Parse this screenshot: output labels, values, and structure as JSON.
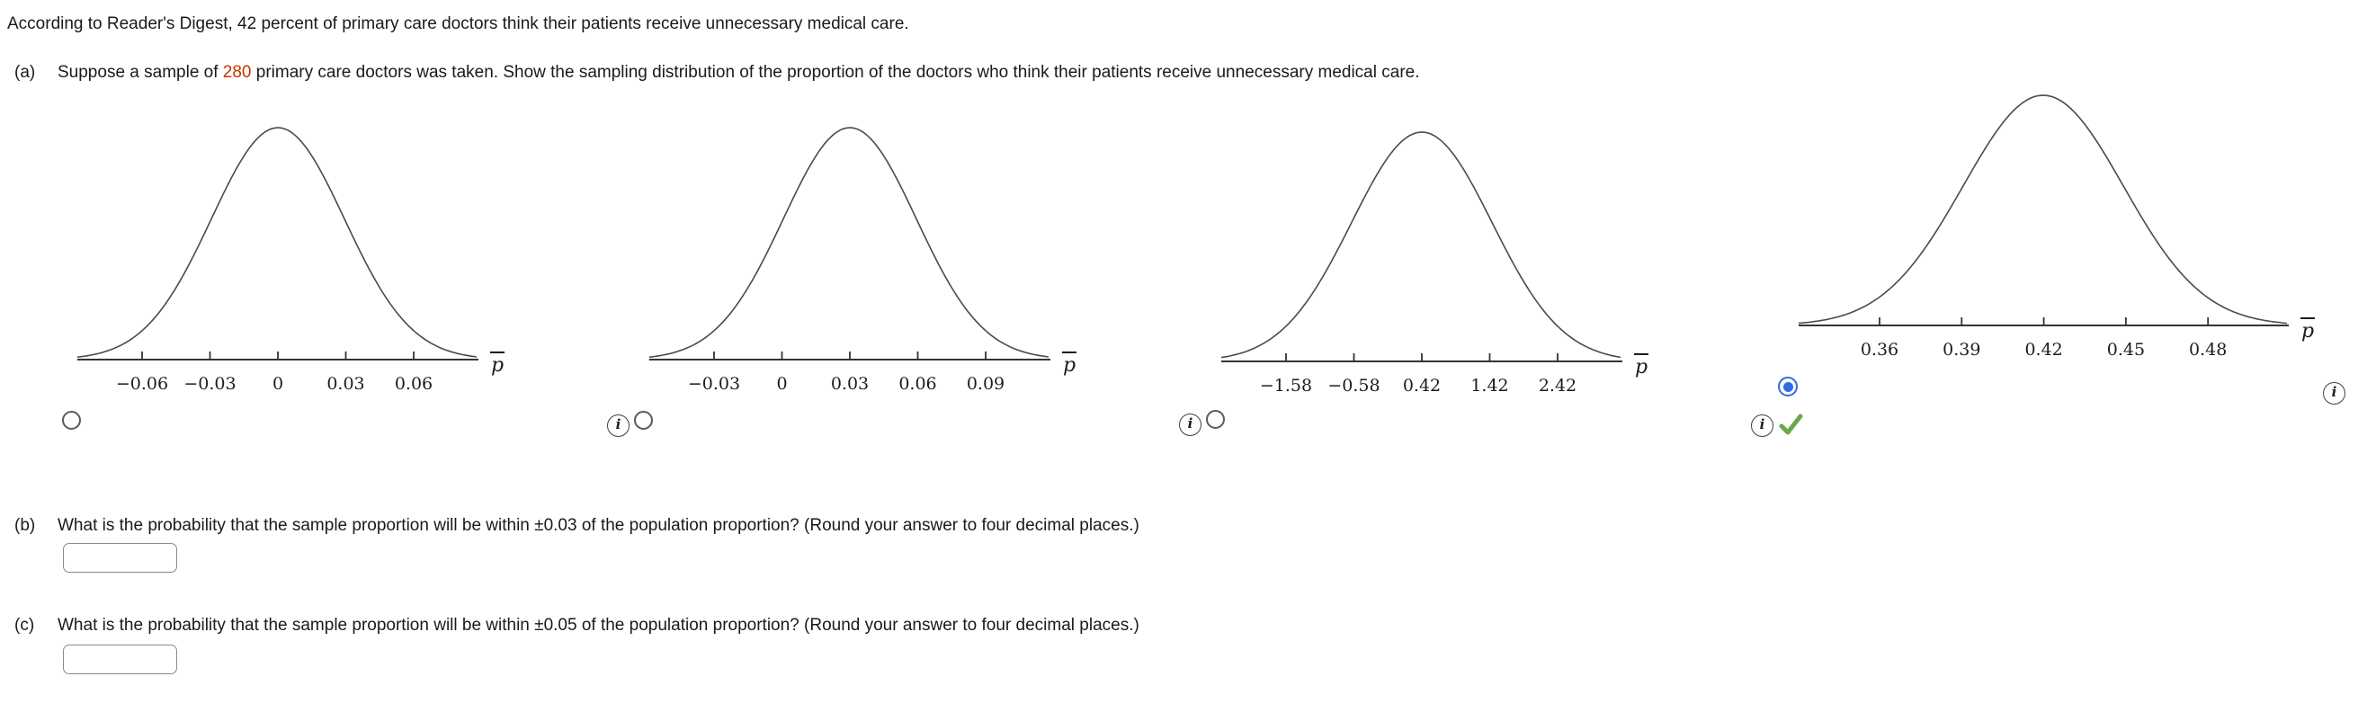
{
  "intro": "According to Reader's Digest, 42 percent of primary care doctors think their patients receive unnecessary medical care.",
  "part_a": {
    "label": "(a)",
    "text_prefix": "Suppose a sample of ",
    "highlight": "280",
    "text_suffix": " primary care doctors was taken. Show the sampling distribution of the proportion of the doctors who think their patients receive unnecessary medical care.",
    "options": [
      {
        "id": "option-1",
        "selected": false,
        "correct": false,
        "axis_label": "p̄",
        "ticks": [
          "−0.06",
          "−0.03",
          "0",
          "0.03",
          "0.06"
        ]
      },
      {
        "id": "option-2",
        "selected": false,
        "correct": false,
        "axis_label": "p̄",
        "ticks": [
          "−0.03",
          "0",
          "0.03",
          "0.06",
          "0.09"
        ]
      },
      {
        "id": "option-3",
        "selected": false,
        "correct": false,
        "axis_label": "p̄",
        "ticks": [
          "−1.58",
          "−0.58",
          "0.42",
          "1.42",
          "2.42"
        ]
      },
      {
        "id": "option-4",
        "selected": true,
        "correct": true,
        "axis_label": "p̄",
        "ticks": [
          "0.36",
          "0.39",
          "0.42",
          "0.45",
          "0.48"
        ]
      }
    ]
  },
  "part_b": {
    "label": "(b)",
    "text": "What is the probability that the sample proportion will be within ±0.03 of the population proportion? (Round your answer to four decimal places.)",
    "input_value": ""
  },
  "part_c": {
    "label": "(c)",
    "text": "What is the probability that the sample proportion will be within ±0.05 of the population proportion? (Round your answer to four decimal places.)",
    "input_value": ""
  },
  "icons": {
    "info_glyph": "i"
  },
  "colors": {
    "highlight_red": "#cc3300",
    "radio_selected_blue": "#2e6ce2",
    "check_green": "#6aa84f",
    "curve_stroke": "#4a4a4a",
    "axis_stroke": "#333333"
  },
  "chart_data": [
    {
      "type": "line",
      "shape": "normal-density",
      "mean": 0,
      "sd": 0.03,
      "x_ticks": [
        -0.06,
        -0.03,
        0,
        0.03,
        0.06
      ],
      "xlabel": "p̄",
      "grid": false,
      "title": ""
    },
    {
      "type": "line",
      "shape": "normal-density",
      "mean": 0.03,
      "sd": 0.03,
      "x_ticks": [
        -0.03,
        0,
        0.03,
        0.06,
        0.09
      ],
      "xlabel": "p̄",
      "grid": false,
      "title": ""
    },
    {
      "type": "line",
      "shape": "normal-density",
      "mean": 0.42,
      "sd": 1.0,
      "x_ticks": [
        -1.58,
        -0.58,
        0.42,
        1.42,
        2.42
      ],
      "xlabel": "p̄",
      "grid": false,
      "title": ""
    },
    {
      "type": "line",
      "shape": "normal-density",
      "mean": 0.42,
      "sd": 0.03,
      "x_ticks": [
        0.36,
        0.39,
        0.42,
        0.45,
        0.48
      ],
      "xlabel": "p̄",
      "grid": false,
      "title": ""
    }
  ]
}
